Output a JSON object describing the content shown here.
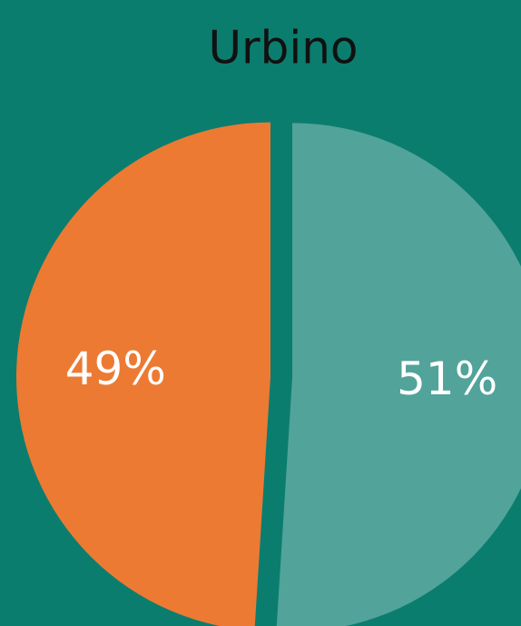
{
  "chart_data": {
    "type": "pie",
    "title": "Urbino",
    "values": [
      51,
      49
    ],
    "value_labels": [
      "51%",
      "49%"
    ],
    "colors": [
      "#52a39a",
      "#ec7a33"
    ],
    "start_angle": 0,
    "direction": "clockwise",
    "explode": true
  }
}
